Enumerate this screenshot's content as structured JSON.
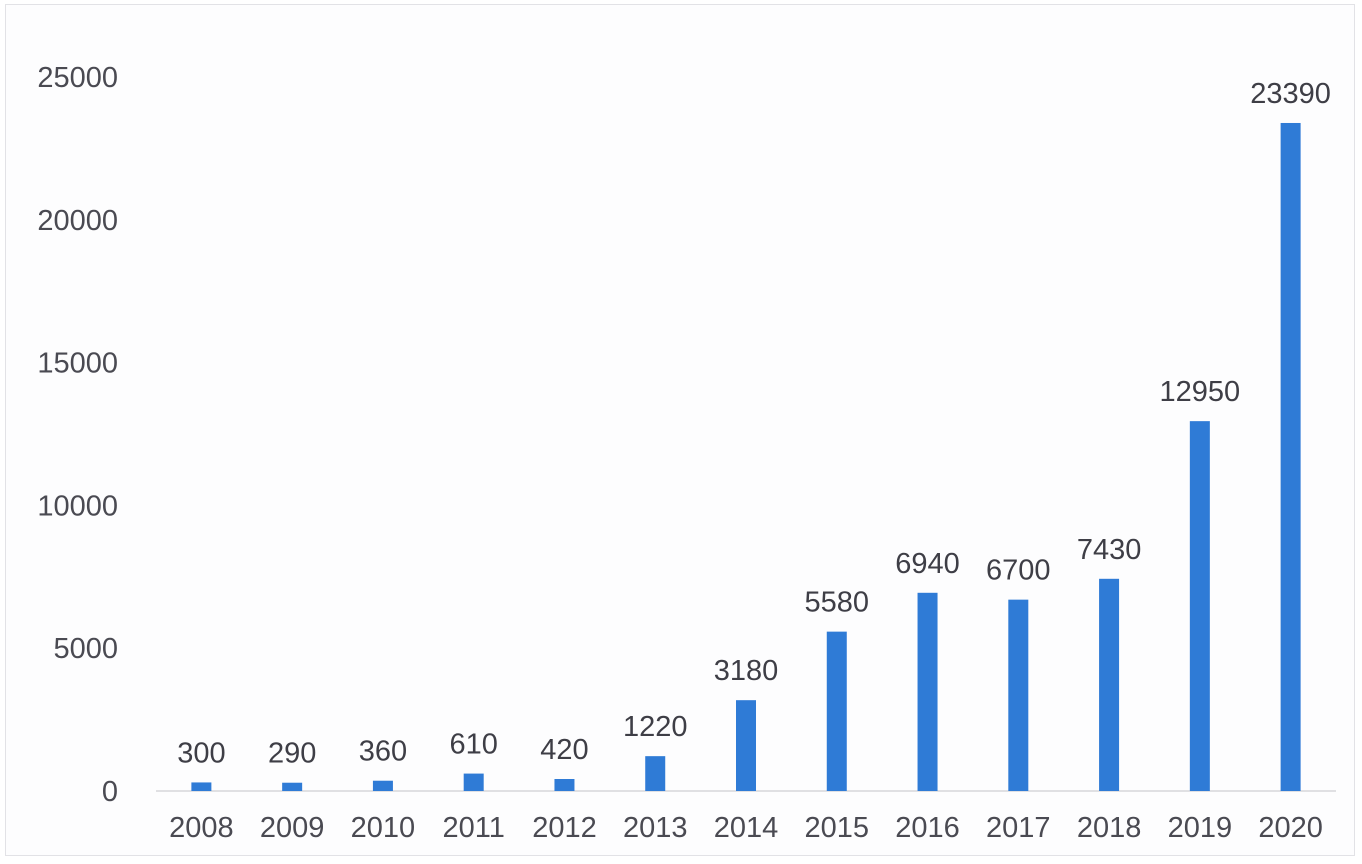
{
  "chart_data": {
    "type": "bar",
    "categories": [
      "2008",
      "2009",
      "2010",
      "2011",
      "2012",
      "2013",
      "2014",
      "2015",
      "2016",
      "2017",
      "2018",
      "2019",
      "2020"
    ],
    "values": [
      300,
      290,
      360,
      610,
      420,
      1220,
      3180,
      5580,
      6940,
      6700,
      7430,
      12950,
      23390
    ],
    "title": "",
    "xlabel": "",
    "ylabel": "",
    "ylim": [
      0,
      25000
    ],
    "yticks": [
      0,
      5000,
      10000,
      15000,
      20000,
      25000
    ],
    "grid": false,
    "legend": "none",
    "data_labels": true,
    "colors": {
      "bar": "#2f7bd6"
    }
  }
}
